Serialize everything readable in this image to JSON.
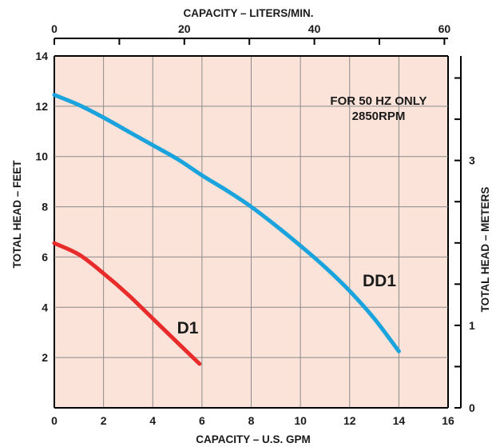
{
  "chart_data": {
    "type": "line",
    "note": [
      "FOR 50 HZ ONLY",
      "2850RPM"
    ],
    "xlabel": "CAPACITY – U.S. GPM",
    "ylabel": "TOTAL HEAD – FEET",
    "x2label": "CAPACITY – LITERS/MIN.",
    "y2label": "TOTAL HEAD – METERS",
    "xlim": [
      0,
      16
    ],
    "ylim": [
      0,
      14
    ],
    "x2lim": [
      0,
      60.567
    ],
    "y2lim": [
      0,
      4.267
    ],
    "xticks": [
      "0",
      "2",
      "4",
      "6",
      "8",
      "10",
      "12",
      "14",
      "16"
    ],
    "yticks": [
      "2",
      "4",
      "6",
      "8",
      "10",
      "12",
      "14"
    ],
    "x2ticks": [
      {
        "value": 0,
        "label": "0"
      },
      {
        "value": 10,
        "label": ""
      },
      {
        "value": 20,
        "label": "20"
      },
      {
        "value": 30,
        "label": ""
      },
      {
        "value": 40,
        "label": "40"
      },
      {
        "value": 50,
        "label": ""
      },
      {
        "value": 60,
        "label": "60"
      }
    ],
    "y2ticks": [
      {
        "value": 0,
        "label": "0"
      },
      {
        "value": 0.5,
        "label": ""
      },
      {
        "value": 1,
        "label": "1"
      },
      {
        "value": 1.5,
        "label": ""
      },
      {
        "value": 2,
        "label": ""
      },
      {
        "value": 2.5,
        "label": ""
      },
      {
        "value": 3,
        "label": "3"
      },
      {
        "value": 3.5,
        "label": ""
      },
      {
        "value": 4,
        "label": ""
      }
    ],
    "grid": true,
    "colors": {
      "plot_background": "#FCE3D9",
      "grid": "#8A8A8A",
      "axis": "#000000"
    },
    "series": [
      {
        "name": "DD1",
        "color": "#1AA3DC",
        "x": [
          0,
          1,
          2,
          3,
          4,
          5,
          6,
          7,
          8,
          9,
          10,
          11,
          12,
          13,
          14
        ],
        "y": [
          12.45,
          12.05,
          11.55,
          11.0,
          10.45,
          9.9,
          9.25,
          8.65,
          8.0,
          7.25,
          6.45,
          5.6,
          4.65,
          3.55,
          2.25
        ]
      },
      {
        "name": "D1",
        "color": "#E82B2B",
        "x": [
          0,
          1,
          2,
          3,
          4,
          5,
          5.9
        ],
        "y": [
          6.55,
          6.1,
          5.35,
          4.5,
          3.55,
          2.6,
          1.75
        ]
      }
    ]
  }
}
